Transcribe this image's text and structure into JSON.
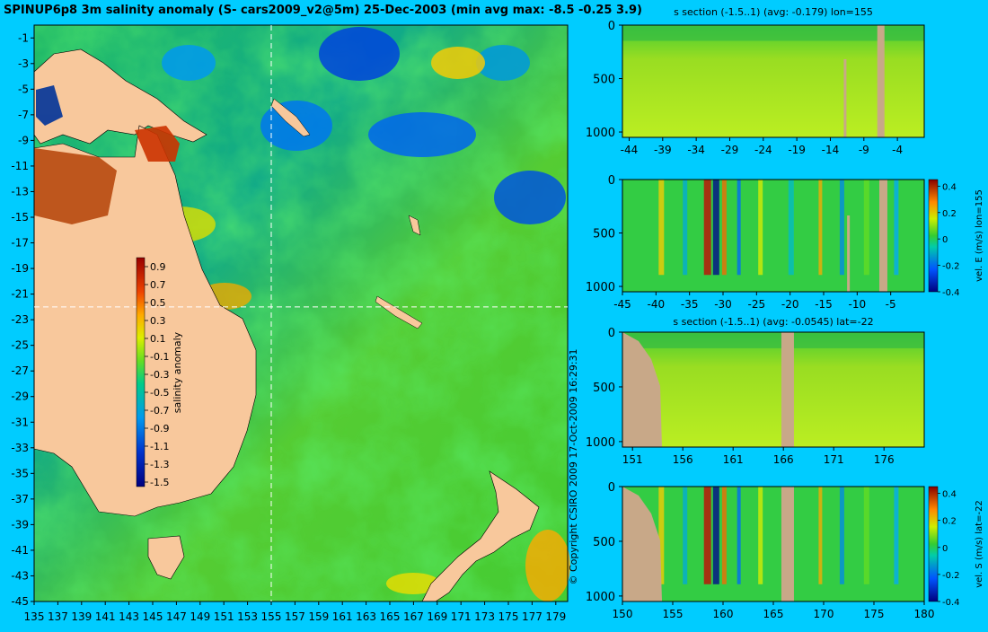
{
  "map": {
    "title": "SPINUP6p8 3m salinity anomaly (S- cars2009_v2@5m) 25-Dec-2003 (min avg max: -8.5 -0.25 3.9)",
    "copyright": "© Copyright CSIRO 2009   17-Oct-2009 16:29:31",
    "colorbar": {
      "label": "salinity anomaly",
      "ticks": [
        "0.9",
        "0.7",
        "0.5",
        "0.3",
        "0.1",
        "-0.1",
        "-0.3",
        "-0.5",
        "-0.7",
        "-0.9",
        "-1.1",
        "-1.3",
        "-1.5"
      ]
    },
    "xticks": [
      "135",
      "137",
      "139",
      "141",
      "143",
      "145",
      "147",
      "149",
      "151",
      "153",
      "155",
      "157",
      "159",
      "161",
      "163",
      "165",
      "167",
      "169",
      "171",
      "173",
      "175",
      "177",
      "179"
    ],
    "yticks": [
      "-1",
      "-3",
      "-5",
      "-7",
      "-9",
      "-11",
      "-13",
      "-15",
      "-17",
      "-19",
      "-21",
      "-23",
      "-25",
      "-27",
      "-29",
      "-31",
      "-33",
      "-35",
      "-37",
      "-39",
      "-41",
      "-43",
      "-45"
    ],
    "section_lon": 155,
    "section_lat": -22
  },
  "chart_data": [
    {
      "type": "heatmap",
      "title": "SPINUP6p8 3m salinity anomaly (S- cars2009_v2@5m) 25-Dec-2003 (min avg max: -8.5 -0.25 3.9)",
      "xlim": [
        135,
        180
      ],
      "ylim": [
        -45,
        0
      ],
      "colorbar_label": "salinity anomaly",
      "colorbar_range": [
        -1.5,
        1.0
      ],
      "min": -8.5,
      "avg": -0.25,
      "max": 3.9
    },
    {
      "type": "heatmap",
      "title": "s section (-1.5..1) (avg: -0.179) lon=155",
      "xlim": [
        -45,
        0
      ],
      "ylim": [
        1050,
        0
      ],
      "xticks": [
        "-44",
        "-39",
        "-34",
        "-29",
        "-24",
        "-19",
        "-14",
        "-9",
        "-4"
      ],
      "yticks": [
        "0",
        "500",
        "1000"
      ]
    },
    {
      "type": "heatmap",
      "title": "",
      "colorbar_label": "vel. E (m/s) lon=155",
      "colorbar_range": [
        -0.4,
        0.45
      ],
      "xlim": [
        -45,
        0
      ],
      "ylim": [
        1050,
        0
      ],
      "xticks": [
        "-45",
        "-40",
        "-35",
        "-30",
        "-25",
        "-20",
        "-15",
        "-10",
        "-5"
      ],
      "yticks": [
        "0",
        "500",
        "1000"
      ],
      "cbticks": [
        "0.4",
        "0.2",
        "0",
        "-0.2",
        "-0.4"
      ]
    },
    {
      "type": "heatmap",
      "title": "s section (-1.5..1) (avg: -0.0545) lat=-22",
      "xlim": [
        150,
        180
      ],
      "ylim": [
        1050,
        0
      ],
      "xticks": [
        "151",
        "156",
        "161",
        "166",
        "171",
        "176"
      ],
      "yticks": [
        "0",
        "500",
        "1000"
      ]
    },
    {
      "type": "heatmap",
      "title": "",
      "colorbar_label": "vel. S (m/s) lat=-22",
      "colorbar_range": [
        -0.4,
        0.45
      ],
      "xlim": [
        150,
        180
      ],
      "ylim": [
        1050,
        0
      ],
      "xticks": [
        "150",
        "155",
        "160",
        "165",
        "170",
        "175",
        "180"
      ],
      "yticks": [
        "0",
        "500",
        "1000"
      ],
      "cbticks": [
        "0.4",
        "0.2",
        "0",
        "-0.2",
        "-0.4"
      ]
    }
  ]
}
